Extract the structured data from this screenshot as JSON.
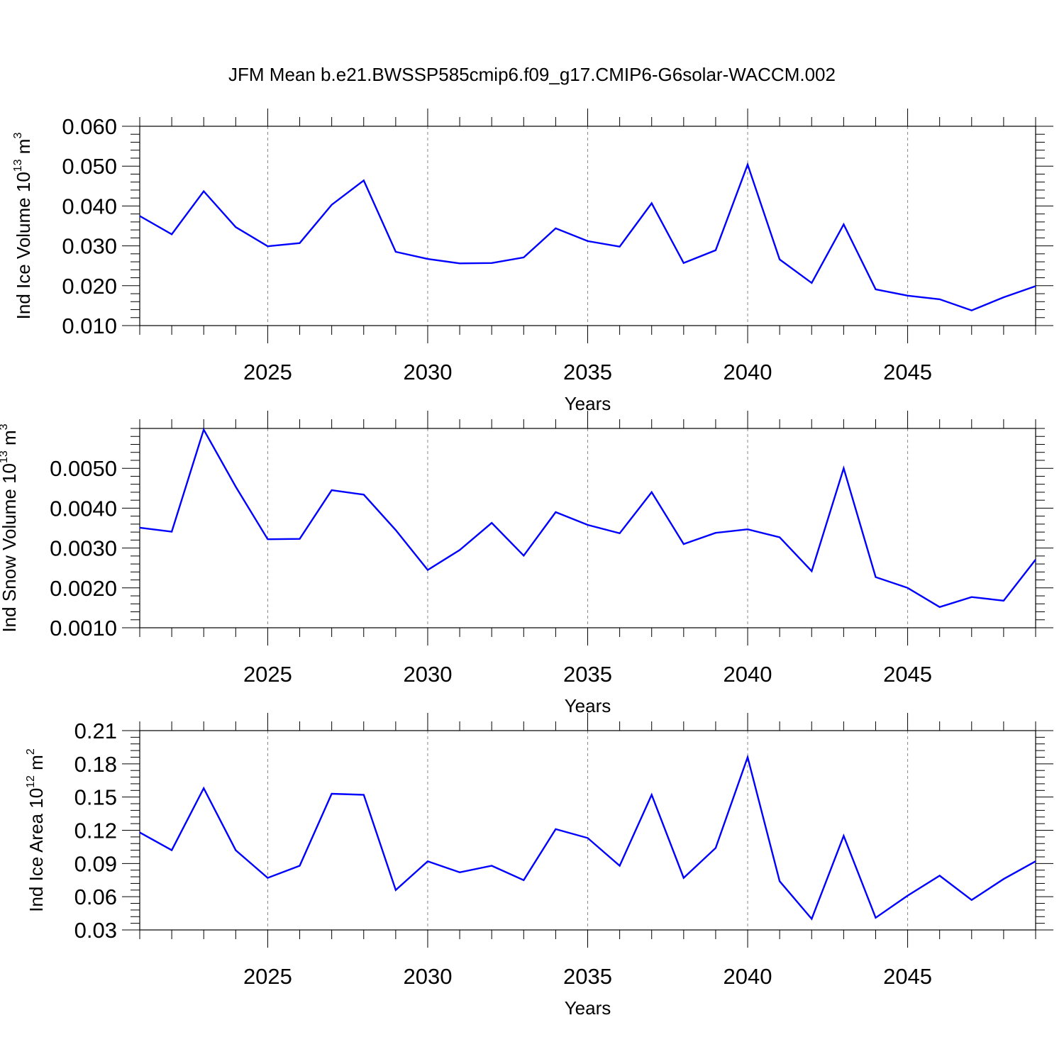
{
  "title": "JFM Mean b.e21.BWSSP585cmip6.f09_g17.CMIP6-G6solar-WACCM.002",
  "colors": {
    "line": "#0000ff",
    "axis": "#000000",
    "grid": "#888888"
  },
  "chart_data": [
    {
      "type": "line",
      "ylabel": {
        "text": "Ind Ice Volume 10",
        "exp": "13",
        "unit": " m",
        "unit_exp": "3"
      },
      "xlabel": "Years",
      "xlim": [
        2021,
        2049
      ],
      "ylim": [
        0.01,
        0.06
      ],
      "yticks": [
        0.01,
        0.02,
        0.03,
        0.04,
        0.05,
        0.06
      ],
      "ytick_labels": [
        "0.010",
        "0.020",
        "0.030",
        "0.040",
        "0.050",
        "0.060"
      ],
      "xticks": [
        2025,
        2030,
        2035,
        2040,
        2045
      ],
      "xtick_labels": [
        "2025",
        "2030",
        "2035",
        "2040",
        "2045"
      ],
      "x": [
        2021,
        2022,
        2023,
        2024,
        2025,
        2026,
        2027,
        2028,
        2029,
        2030,
        2031,
        2032,
        2033,
        2034,
        2035,
        2036,
        2037,
        2038,
        2039,
        2040,
        2041,
        2042,
        2043,
        2044,
        2045,
        2046,
        2047,
        2048,
        2049
      ],
      "values": [
        0.0375,
        0.0329,
        0.0437,
        0.0347,
        0.0299,
        0.0307,
        0.0403,
        0.0464,
        0.0285,
        0.0267,
        0.0256,
        0.0257,
        0.0271,
        0.0344,
        0.0312,
        0.0298,
        0.0407,
        0.0257,
        0.0289,
        0.0504,
        0.0266,
        0.0207,
        0.0354,
        0.0191,
        0.0175,
        0.0166,
        0.0138,
        0.0171,
        0.0199
      ]
    },
    {
      "type": "line",
      "ylabel": {
        "text": "Ind Snow Volume 10",
        "exp": "13",
        "unit": " m",
        "unit_exp": "3"
      },
      "xlabel": "Years",
      "xlim": [
        2021,
        2049
      ],
      "ylim": [
        0.001,
        0.006
      ],
      "yticks": [
        0.001,
        0.002,
        0.003,
        0.004,
        0.005
      ],
      "ytick_labels": [
        "0.0010",
        "0.0020",
        "0.0030",
        "0.0040",
        "0.0050"
      ],
      "xticks": [
        2025,
        2030,
        2035,
        2040,
        2045
      ],
      "xtick_labels": [
        "2025",
        "2030",
        "2035",
        "2040",
        "2045"
      ],
      "x": [
        2021,
        2022,
        2023,
        2024,
        2025,
        2026,
        2027,
        2028,
        2029,
        2030,
        2031,
        2032,
        2033,
        2034,
        2035,
        2036,
        2037,
        2038,
        2039,
        2040,
        2041,
        2042,
        2043,
        2044,
        2045,
        2046,
        2047,
        2048,
        2049
      ],
      "values": [
        0.00351,
        0.00341,
        0.00597,
        0.00454,
        0.00322,
        0.00323,
        0.00445,
        0.00434,
        0.00345,
        0.00245,
        0.00295,
        0.00363,
        0.00281,
        0.0039,
        0.00358,
        0.00337,
        0.0044,
        0.0031,
        0.00338,
        0.00347,
        0.00327,
        0.00242,
        0.005,
        0.00227,
        0.002,
        0.00152,
        0.00177,
        0.00168,
        0.00271
      ]
    },
    {
      "type": "line",
      "ylabel": {
        "text": "Ind Ice Area 10",
        "exp": "12",
        "unit": " m",
        "unit_exp": "2"
      },
      "xlabel": "Years",
      "xlim": [
        2021,
        2049
      ],
      "ylim": [
        0.03,
        0.21
      ],
      "yticks": [
        0.03,
        0.06,
        0.09,
        0.12,
        0.15,
        0.18,
        0.21
      ],
      "ytick_labels": [
        "0.03",
        "0.06",
        "0.09",
        "0.12",
        "0.15",
        "0.18",
        "0.21"
      ],
      "xticks": [
        2025,
        2030,
        2035,
        2040,
        2045
      ],
      "xtick_labels": [
        "2025",
        "2030",
        "2035",
        "2040",
        "2045"
      ],
      "x": [
        2021,
        2022,
        2023,
        2024,
        2025,
        2026,
        2027,
        2028,
        2029,
        2030,
        2031,
        2032,
        2033,
        2034,
        2035,
        2036,
        2037,
        2038,
        2039,
        2040,
        2041,
        2042,
        2043,
        2044,
        2045,
        2046,
        2047,
        2048,
        2049
      ],
      "values": [
        0.118,
        0.102,
        0.158,
        0.102,
        0.077,
        0.088,
        0.153,
        0.152,
        0.066,
        0.092,
        0.082,
        0.088,
        0.075,
        0.121,
        0.113,
        0.088,
        0.152,
        0.077,
        0.104,
        0.186,
        0.074,
        0.04,
        0.115,
        0.041,
        0.061,
        0.079,
        0.057,
        0.076,
        0.092
      ]
    }
  ]
}
